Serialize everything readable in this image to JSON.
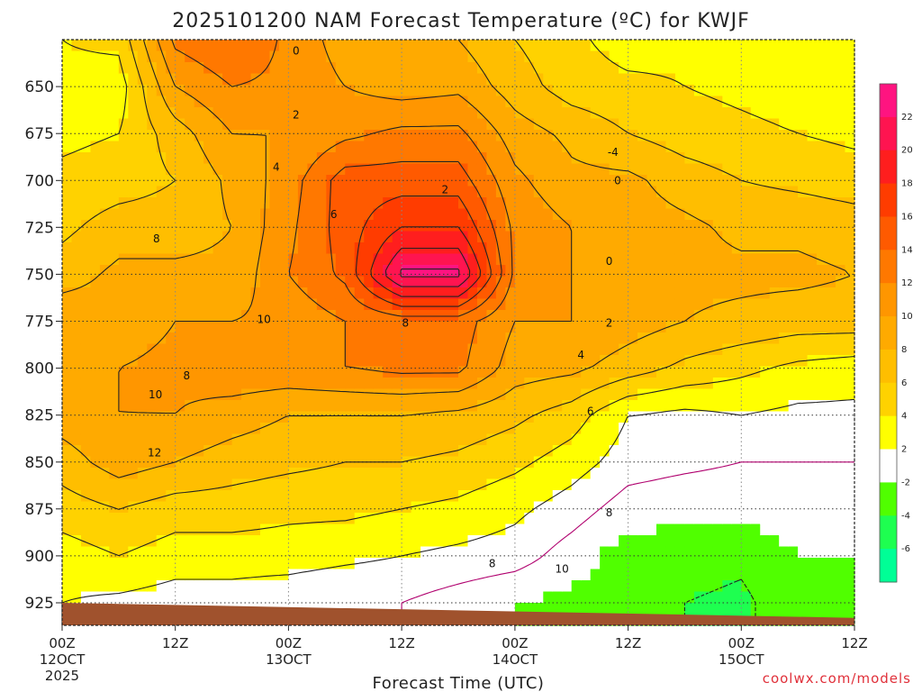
{
  "chart_data": {
    "type": "heatmap",
    "title": "2025101200 NAM Forecast Temperature (ºC) for KWJF",
    "xlabel": "Forecast Time (UTC)",
    "credit": "coolwx.com/models",
    "y_axis": {
      "variable": "pressure (hPa)",
      "inverted": true,
      "range": [
        625,
        937
      ],
      "ticks": [
        650,
        675,
        700,
        725,
        750,
        775,
        800,
        825,
        850,
        875,
        900,
        925
      ]
    },
    "x_axis": {
      "range_hours": [
        0,
        84
      ],
      "ticks": [
        {
          "hour": 0,
          "line1": "00Z",
          "line2": "12OCT",
          "line3": "2025"
        },
        {
          "hour": 12,
          "line1": "12Z",
          "line2": "",
          "line3": ""
        },
        {
          "hour": 24,
          "line1": "00Z",
          "line2": "13OCT",
          "line3": ""
        },
        {
          "hour": 36,
          "line1": "12Z",
          "line2": "",
          "line3": ""
        },
        {
          "hour": 48,
          "line1": "00Z",
          "line2": "14OCT",
          "line3": ""
        },
        {
          "hour": 60,
          "line1": "12Z",
          "line2": "",
          "line3": ""
        },
        {
          "hour": 72,
          "line1": "00Z",
          "line2": "15OCT",
          "line3": ""
        },
        {
          "hour": 84,
          "line1": "12Z",
          "line2": "",
          "line3": ""
        }
      ]
    },
    "grid": "dotted",
    "colorbar": {
      "position": "right",
      "levels": [
        {
          "lo": 22,
          "hi": 24,
          "color": "#ff1480"
        },
        {
          "lo": 20,
          "hi": 22,
          "color": "#ff1450"
        },
        {
          "lo": 18,
          "hi": 20,
          "color": "#ff1e1e"
        },
        {
          "lo": 16,
          "hi": 18,
          "color": "#ff3c00"
        },
        {
          "lo": 14,
          "hi": 16,
          "color": "#ff5a00"
        },
        {
          "lo": 12,
          "hi": 14,
          "color": "#ff7800"
        },
        {
          "lo": 10,
          "hi": 12,
          "color": "#ff9600"
        },
        {
          "lo": 8,
          "hi": 10,
          "color": "#ffaa00"
        },
        {
          "lo": 6,
          "hi": 8,
          "color": "#ffbe00"
        },
        {
          "lo": 4,
          "hi": 6,
          "color": "#ffd200"
        },
        {
          "lo": 2,
          "hi": 4,
          "color": "#ffff00"
        },
        {
          "lo": -2,
          "hi": 2,
          "color": "#ffffff"
        },
        {
          "lo": -4,
          "hi": -2,
          "color": "#50ff00"
        },
        {
          "lo": -6,
          "hi": -4,
          "color": "#1eff50"
        },
        {
          "lo": -8,
          "hi": -6,
          "color": "#00ff96"
        }
      ],
      "tick_labels": [
        "22",
        "20",
        "18",
        "16",
        "14",
        "12",
        "10",
        "8",
        "6",
        "4",
        "2",
        "-2",
        "-4",
        "-6"
      ]
    },
    "temperature_profiles": {
      "levels_hpa": [
        625,
        650,
        675,
        700,
        725,
        750,
        775,
        800,
        825,
        850,
        875,
        900,
        925
      ],
      "hours": [
        0,
        6,
        12,
        18,
        24,
        30,
        36,
        42,
        48,
        54,
        60,
        66,
        72,
        78,
        84
      ],
      "values": [
        [
          4.0,
          4.5,
          12.5,
          14.0,
          11.5,
          9.0,
          8.0,
          8.0,
          6.0,
          4.5,
          3.0,
          3.5,
          3.0,
          3.5,
          3.0
        ],
        [
          3.5,
          3.0,
          10.0,
          12.0,
          11.5,
          10.0,
          9.0,
          9.5,
          7.0,
          5.0,
          4.5,
          4.0,
          3.5,
          3.0,
          3.0
        ],
        [
          3.5,
          4.0,
          7.0,
          10.0,
          10.0,
          11.5,
          12.5,
          12.5,
          9.0,
          7.5,
          6.0,
          5.0,
          4.5,
          4.0,
          3.5
        ],
        [
          4.5,
          5.0,
          6.0,
          8.5,
          11.0,
          15.0,
          15.0,
          15.0,
          10.5,
          8.5,
          8.5,
          7.0,
          6.0,
          5.5,
          5.0
        ],
        [
          5.5,
          7.0,
          7.0,
          8.0,
          11.5,
          15.0,
          18.0,
          18.0,
          11.5,
          10.0,
          9.0,
          8.5,
          7.5,
          7.5,
          7.0
        ],
        [
          7.0,
          8.5,
          8.5,
          8.5,
          12.0,
          14.5,
          22.5,
          22.5,
          11.5,
          10.0,
          9.0,
          8.5,
          8.5,
          8.5,
          8.0
        ],
        [
          9.5,
          9.0,
          10.0,
          10.0,
          10.5,
          12.0,
          13.0,
          13.0,
          10.0,
          10.0,
          9.0,
          8.0,
          7.5,
          7.0,
          7.0
        ],
        [
          9.0,
          10.0,
          10.5,
          11.5,
          11.5,
          12.0,
          12.5,
          12.5,
          9.0,
          8.5,
          7.0,
          5.5,
          4.5,
          3.5,
          3.0
        ],
        [
          9.0,
          10.0,
          10.0,
          9.0,
          8.0,
          8.0,
          8.0,
          7.5,
          6.5,
          5.0,
          2.0,
          1.5,
          2.0,
          1.5,
          1.5
        ],
        [
          7.0,
          9.0,
          8.0,
          7.0,
          6.5,
          6.0,
          6.0,
          5.5,
          4.5,
          3.0,
          1.0,
          0.5,
          0.0,
          0.0,
          0.0
        ],
        [
          5.0,
          6.0,
          5.0,
          5.0,
          4.5,
          4.5,
          4.0,
          3.5,
          2.5,
          1.0,
          -1.0,
          -1.5,
          -1.5,
          -1.0,
          -0.5
        ],
        [
          3.0,
          4.0,
          3.0,
          3.0,
          3.0,
          2.5,
          2.0,
          1.5,
          1.0,
          -1.0,
          -3.0,
          -3.0,
          -3.5,
          -2.0,
          -2.0
        ],
        [
          2.0,
          1.5,
          1.0,
          1.0,
          0.5,
          0.0,
          0.0,
          -1.0,
          -2.0,
          -2.5,
          -3.0,
          -4.0,
          -4.5,
          -2.5,
          -2.0
        ]
      ]
    },
    "contour_labels": [
      {
        "text": "0",
        "hour": 24.8,
        "hpa": 631
      },
      {
        "text": "2",
        "hour": 24.8,
        "hpa": 665
      },
      {
        "text": "4",
        "hour": 22.7,
        "hpa": 693
      },
      {
        "text": "6",
        "hour": 28.8,
        "hpa": 718
      },
      {
        "text": "8",
        "hour": 10.0,
        "hpa": 731
      },
      {
        "text": "10",
        "hour": 21.4,
        "hpa": 774
      },
      {
        "text": "8",
        "hour": 36.4,
        "hpa": 776
      },
      {
        "text": "8",
        "hour": 13.2,
        "hpa": 804
      },
      {
        "text": "10",
        "hour": 9.9,
        "hpa": 814
      },
      {
        "text": "12",
        "hour": 9.8,
        "hpa": 845
      },
      {
        "text": "2",
        "hour": 40.6,
        "hpa": 705
      },
      {
        "text": "0",
        "hour": 58.9,
        "hpa": 700
      },
      {
        "text": "-4",
        "hour": 58.4,
        "hpa": 685
      },
      {
        "text": "0",
        "hour": 58.0,
        "hpa": 743
      },
      {
        "text": "2",
        "hour": 58.0,
        "hpa": 776
      },
      {
        "text": "4",
        "hour": 55.0,
        "hpa": 793
      },
      {
        "text": "6",
        "hour": 56.0,
        "hpa": 823
      },
      {
        "text": "8",
        "hour": 58.0,
        "hpa": 877
      },
      {
        "text": "8",
        "hour": 45.6,
        "hpa": 904
      },
      {
        "text": "10",
        "hour": 53.0,
        "hpa": 907
      }
    ],
    "terrain": {
      "hpa_at_start": 925,
      "hpa_at_end": 933
    }
  }
}
